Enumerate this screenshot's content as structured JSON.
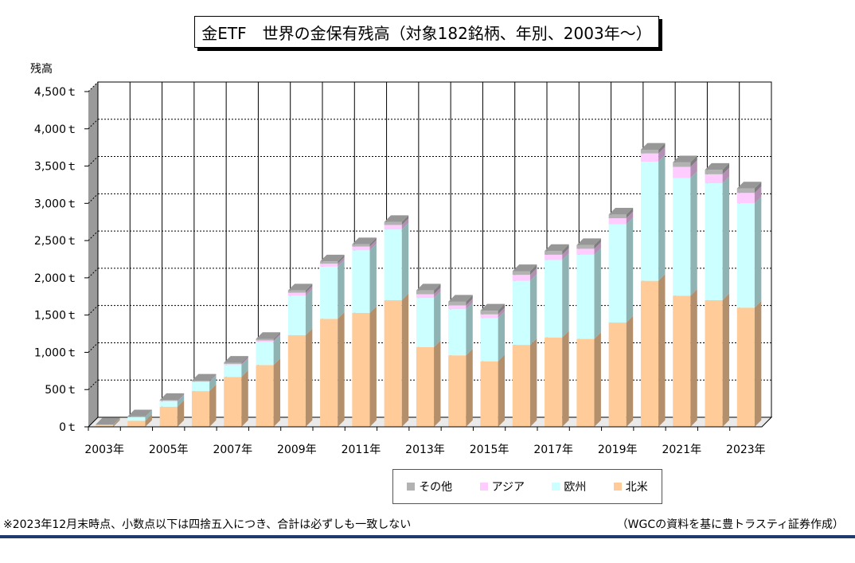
{
  "title": "金ETF　世界の金保有残高（対象182銘柄、年別、2003年～）",
  "note": "※2023年12月末時点、小数点以下は四捨五入につき、合計は必ずしも一致しない",
  "source": "（WGCの資料を基に豊トラスティ証券作成）",
  "chart_data": {
    "type": "bar",
    "stacked": true,
    "ylabel": "残高",
    "ylim": [
      0,
      4500
    ],
    "yticks": [
      "0ｔ",
      "500ｔ",
      "1,000ｔ",
      "1,500ｔ",
      "2,000ｔ",
      "2,500ｔ",
      "3,000ｔ",
      "3,500ｔ",
      "4,000ｔ",
      "4,500ｔ"
    ],
    "categories": [
      "2003年",
      "2004年",
      "2005年",
      "2006年",
      "2007年",
      "2008年",
      "2009年",
      "2010年",
      "2011年",
      "2012年",
      "2013年",
      "2014年",
      "2015年",
      "2016年",
      "2017年",
      "2018年",
      "2019年",
      "2020年",
      "2021年",
      "2022年",
      "2023年"
    ],
    "xtick_labels": [
      "2003年",
      "",
      "2005年",
      "",
      "2007年",
      "",
      "2009年",
      "",
      "2011年",
      "",
      "2013年",
      "",
      "2015年",
      "",
      "2017年",
      "",
      "2019年",
      "",
      "2021年",
      "",
      "2023年"
    ],
    "grid": true,
    "legend_position": "bottom",
    "series": [
      {
        "name": "北米",
        "color": "#FFCC99",
        "values": [
          20,
          80,
          270,
          480,
          670,
          830,
          1230,
          1450,
          1530,
          1700,
          1070,
          960,
          880,
          1100,
          1200,
          1180,
          1400,
          1960,
          1760,
          1700,
          1600
        ]
      },
      {
        "name": "欧州",
        "color": "#CCFFFF",
        "values": [
          5,
          50,
          70,
          120,
          160,
          310,
          530,
          700,
          840,
          950,
          660,
          620,
          580,
          860,
          1040,
          1130,
          1320,
          1600,
          1580,
          1570,
          1400
        ]
      },
      {
        "name": "アジア",
        "color": "#FFCCFF",
        "values": [
          0,
          5,
          10,
          10,
          15,
          20,
          40,
          40,
          50,
          60,
          50,
          50,
          50,
          80,
          70,
          80,
          80,
          110,
          150,
          120,
          140
        ]
      },
      {
        "name": "その他",
        "color": "#B2B2B2",
        "values": [
          5,
          5,
          10,
          10,
          15,
          20,
          30,
          30,
          30,
          40,
          50,
          50,
          50,
          50,
          50,
          50,
          50,
          50,
          60,
          60,
          60
        ]
      }
    ]
  }
}
